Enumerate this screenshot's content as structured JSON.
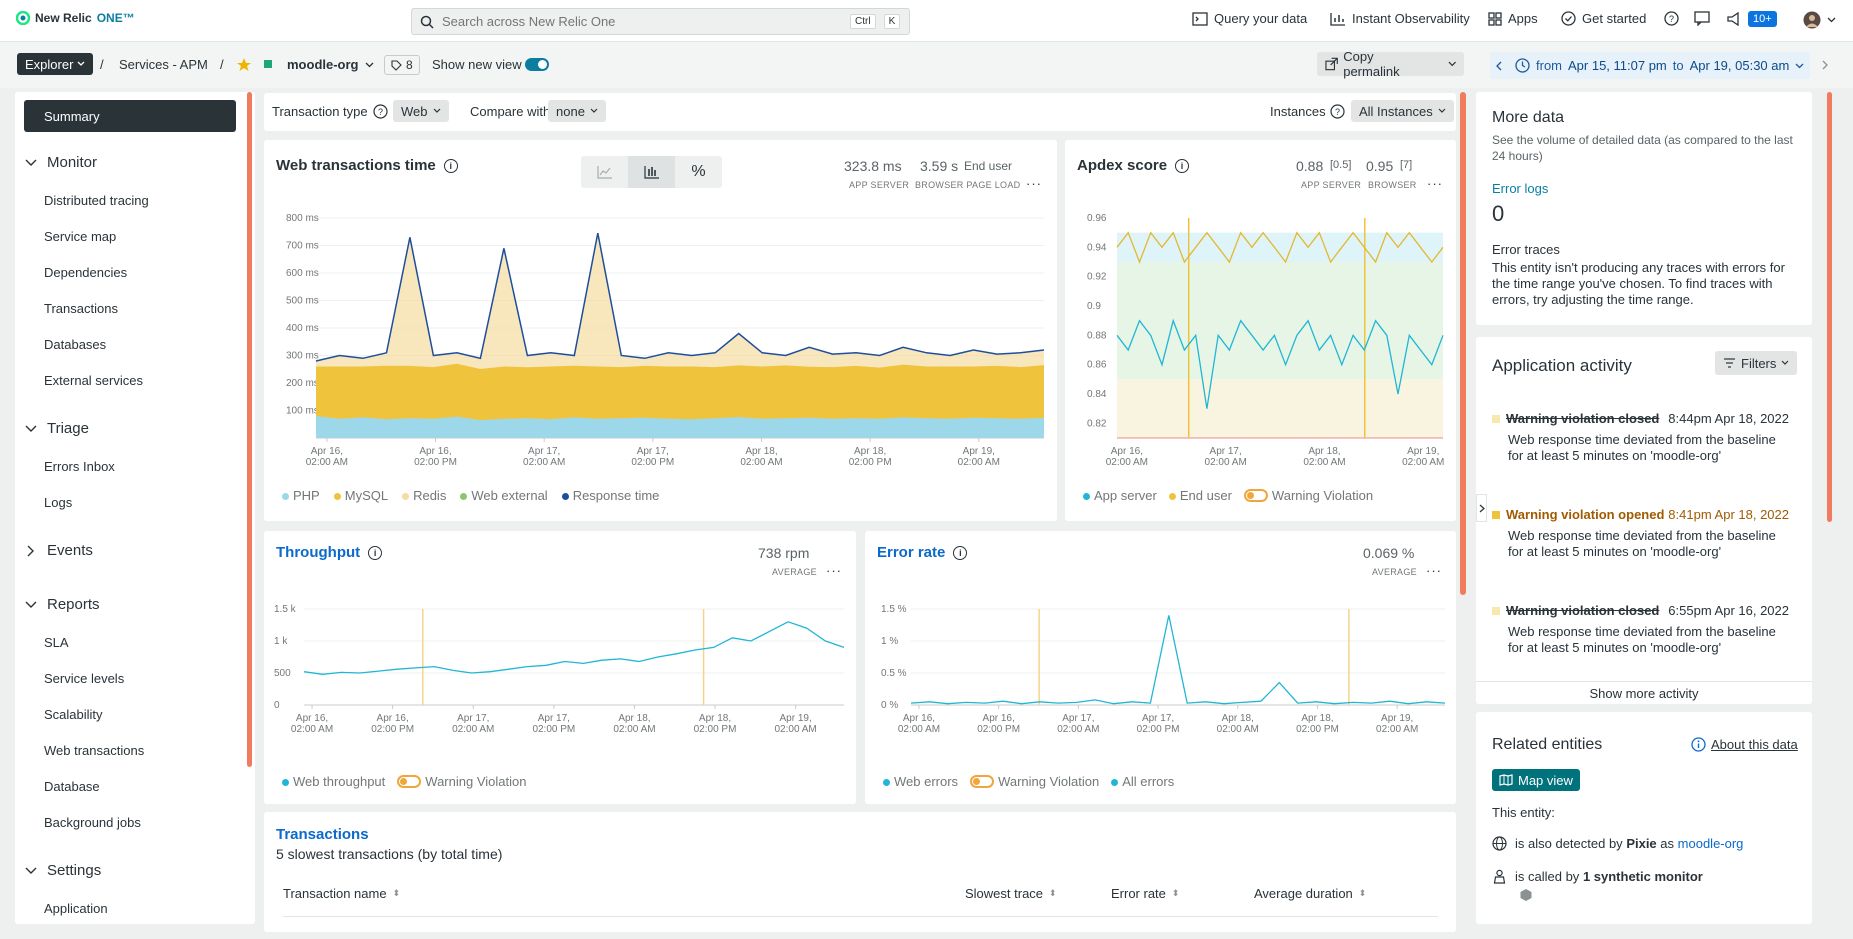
{
  "topbar": {
    "logo_new_relic": "New Relic",
    "logo_one": "ONE™",
    "search_placeholder": "Search across New Relic One",
    "search_kbd1": "Ctrl",
    "search_kbd2": "K",
    "nav": {
      "query": "Query your data",
      "instant": "Instant Observability",
      "apps": "Apps",
      "get_started": "Get started",
      "notif_count": "10+"
    }
  },
  "subbar": {
    "explorer": "Explorer",
    "crumb_sep": "/",
    "crumb_apm": "Services - APM",
    "entity": "moodle-org",
    "tag_count": "8",
    "show_new_view": "Show new view",
    "copy_permalink": "Copy permalink",
    "time_from": "from",
    "time_start": "Apr 15, 11:07 pm",
    "time_to": "to",
    "time_end": "Apr 19, 05:30 am"
  },
  "sidebar": {
    "summary": "Summary",
    "sections": [
      {
        "label": "Monitor",
        "items": [
          "Distributed tracing",
          "Service map",
          "Dependencies",
          "Transactions",
          "Databases",
          "External services"
        ]
      },
      {
        "label": "Triage",
        "items": [
          "Errors Inbox",
          "Logs"
        ]
      },
      {
        "label": "Events",
        "items": []
      },
      {
        "label": "Reports",
        "items": [
          "SLA",
          "Service levels",
          "Scalability",
          "Web transactions",
          "Database",
          "Background jobs"
        ]
      },
      {
        "label": "Settings",
        "items": [
          "Application"
        ]
      }
    ]
  },
  "filters": {
    "transaction_type_label": "Transaction type",
    "transaction_type_value": "Web",
    "compare_label": "Compare with",
    "compare_value": "none",
    "instances_label": "Instances",
    "instances_value": "All Instances"
  },
  "web_tx": {
    "title": "Web transactions time",
    "app_val": "323.8 ms",
    "app_lbl": "APP SERVER",
    "browser_val": "3.59 s",
    "browser_unit": "End user",
    "browser_lbl": "BROWSER PAGE LOAD",
    "legend": [
      "PHP",
      "MySQL",
      "Redis",
      "Web external",
      "Response time"
    ],
    "legend_colors": [
      "#9dd8ea",
      "#f0c33c",
      "#f5dca0",
      "#8cc56a",
      "#1f4e9c"
    ]
  },
  "apdex": {
    "title": "Apdex score",
    "app_val": "0.88",
    "app_t": "[0.5]",
    "app_lbl": "APP SERVER",
    "browser_val": "0.95",
    "browser_t": "[7]",
    "browser_lbl": "BROWSER",
    "legend": [
      "App server",
      "End user",
      "Warning Violation"
    ]
  },
  "throughput": {
    "title": "Throughput",
    "value": "738 rpm",
    "value_lbl": "AVERAGE",
    "legend": [
      "Web throughput",
      "Warning Violation"
    ]
  },
  "error_rate": {
    "title": "Error rate",
    "value": "0.069 %",
    "value_lbl": "AVERAGE",
    "legend": [
      "Web errors",
      "Warning Violation",
      "All errors"
    ]
  },
  "transactions": {
    "title": "Transactions",
    "subtitle": "5 slowest transactions (by total time)",
    "cols": [
      "Transaction name",
      "Slowest trace",
      "Error rate",
      "Average duration"
    ]
  },
  "more_data": {
    "title": "More data",
    "desc": "See the volume of detailed data (as compared to the last 24 hours)",
    "error_logs": "Error logs",
    "error_logs_val": "0",
    "error_traces": "Error traces",
    "error_traces_desc": "This entity isn't producing any traces with errors for the time range you've chosen. To find traces with errors, try adjusting the time range."
  },
  "activity": {
    "title": "Application activity",
    "filters": "Filters",
    "items": [
      {
        "title": "Warning violation closed",
        "time": "8:44pm Apr 18, 2022",
        "desc": "Web response time deviated from the baseline for at least 5 minutes on 'moodle-org'"
      },
      {
        "title": "Warning violation opened",
        "time": "8:41pm Apr 18, 2022",
        "desc": "Web response time deviated from the baseline for at least 5 minutes on 'moodle-org'"
      },
      {
        "title": "Warning violation closed",
        "time": "6:55pm Apr 16, 2022",
        "desc": "Web response time deviated from the baseline for at least 5 minutes on 'moodle-org'"
      }
    ],
    "show_more": "Show more activity"
  },
  "related": {
    "title": "Related entities",
    "about": "About this data",
    "map_view": "Map view",
    "this_entity": "This entity:",
    "pixie_pre": "is also detected by",
    "pixie_name": "Pixie",
    "pixie_as": "as",
    "pixie_link": "moodle-org",
    "synth_pre": "is called by",
    "synth_val": "1 synthetic monitor"
  },
  "chart_data": [
    {
      "type": "area",
      "title": "Web transactions time",
      "ylim": [
        0,
        800
      ],
      "yticks": [
        "100 ms",
        "200 ms",
        "300 ms",
        "400 ms",
        "500 ms",
        "600 ms",
        "700 ms",
        "800 ms"
      ],
      "xticks": [
        "Apr 16,|02:00 AM",
        "Apr 16,|02:00 PM",
        "Apr 17,|02:00 AM",
        "Apr 17,|02:00 PM",
        "Apr 18,|02:00 AM",
        "Apr 18,|02:00 PM",
        "Apr 19,|02:00 AM"
      ],
      "series": [
        {
          "name": "PHP",
          "values": [
            80,
            70,
            75,
            68,
            72,
            70,
            78,
            65,
            70,
            72,
            68,
            75,
            70,
            72,
            74,
            70,
            68,
            72,
            76,
            70,
            72,
            74,
            70,
            72,
            70,
            75,
            72,
            70,
            74,
            72,
            70,
            73
          ]
        },
        {
          "name": "MySQL",
          "values": [
            180,
            190,
            185,
            195,
            190,
            188,
            192,
            186,
            190,
            185,
            192,
            188,
            190,
            186,
            188,
            190,
            192,
            186,
            188,
            190,
            192,
            185,
            188,
            190,
            186,
            192,
            188,
            190,
            186,
            190,
            188,
            192
          ]
        },
        {
          "name": "Response time",
          "values": [
            280,
            300,
            290,
            310,
            730,
            300,
            310,
            290,
            690,
            300,
            310,
            300,
            745,
            300,
            290,
            310,
            300,
            310,
            380,
            310,
            300,
            330,
            305,
            310,
            300,
            330,
            310,
            300,
            320,
            305,
            310,
            320
          ]
        }
      ]
    },
    {
      "type": "line",
      "title": "Apdex score",
      "ylim": [
        0.81,
        0.96
      ],
      "yticks": [
        "0.82",
        "0.84",
        "0.86",
        "0.88",
        "0.9",
        "0.92",
        "0.94",
        "0.96"
      ],
      "xticks": [
        "Apr 16,|02:00 AM",
        "Apr 17,|02:00 AM",
        "Apr 18,|02:00 AM",
        "Apr 19,|02:00 AM"
      ],
      "series": [
        {
          "name": "App server",
          "values": [
            0.88,
            0.87,
            0.89,
            0.88,
            0.86,
            0.89,
            0.87,
            0.88,
            0.83,
            0.88,
            0.87,
            0.89,
            0.88,
            0.87,
            0.88,
            0.86,
            0.88,
            0.89,
            0.87,
            0.88,
            0.86,
            0.88,
            0.87,
            0.89,
            0.88,
            0.84,
            0.88,
            0.87,
            0.86,
            0.88
          ]
        },
        {
          "name": "End user",
          "values": [
            0.94,
            0.95,
            0.93,
            0.95,
            0.94,
            0.95,
            0.93,
            0.94,
            0.95,
            0.94,
            0.93,
            0.95,
            0.94,
            0.95,
            0.94,
            0.93,
            0.95,
            0.94,
            0.95,
            0.93,
            0.94,
            0.95,
            0.94,
            0.93,
            0.95,
            0.94,
            0.95,
            0.94,
            0.93,
            0.94
          ]
        }
      ]
    },
    {
      "type": "line",
      "title": "Throughput",
      "ylim": [
        0,
        1500
      ],
      "yticks": [
        "0",
        "500",
        "1 k",
        "1.5 k"
      ],
      "xticks": [
        "Apr 16,|02:00 AM",
        "Apr 16,|02:00 PM",
        "Apr 17,|02:00 AM",
        "Apr 17,|02:00 PM",
        "Apr 18,|02:00 AM",
        "Apr 18,|02:00 PM",
        "Apr 19,|02:00 AM"
      ],
      "series": [
        {
          "name": "Web throughput",
          "values": [
            520,
            480,
            510,
            500,
            530,
            560,
            580,
            600,
            540,
            500,
            520,
            560,
            600,
            620,
            680,
            650,
            700,
            720,
            680,
            750,
            800,
            860,
            900,
            1050,
            1000,
            1150,
            1300,
            1200,
            1000,
            900
          ]
        }
      ]
    },
    {
      "type": "line",
      "title": "Error rate",
      "ylim": [
        0,
        1.5
      ],
      "yticks": [
        "0 %",
        "0.5 %",
        "1 %",
        "1.5 %"
      ],
      "xticks": [
        "Apr 16,|02:00 AM",
        "Apr 16,|02:00 PM",
        "Apr 17,|02:00 AM",
        "Apr 17,|02:00 PM",
        "Apr 18,|02:00 AM",
        "Apr 18,|02:00 PM",
        "Apr 19,|02:00 AM"
      ],
      "series": [
        {
          "name": "Web errors",
          "values": [
            0.03,
            0.05,
            0.02,
            0.04,
            0.03,
            0.06,
            0.02,
            0.05,
            0.03,
            0.04,
            0.08,
            0.02,
            0.05,
            0.03,
            1.4,
            0.03,
            0.05,
            0.02,
            0.04,
            0.06,
            0.35,
            0.03,
            0.05,
            0.02,
            0.04,
            0.03,
            0.06,
            0.02,
            0.05,
            0.03
          ]
        }
      ]
    }
  ]
}
